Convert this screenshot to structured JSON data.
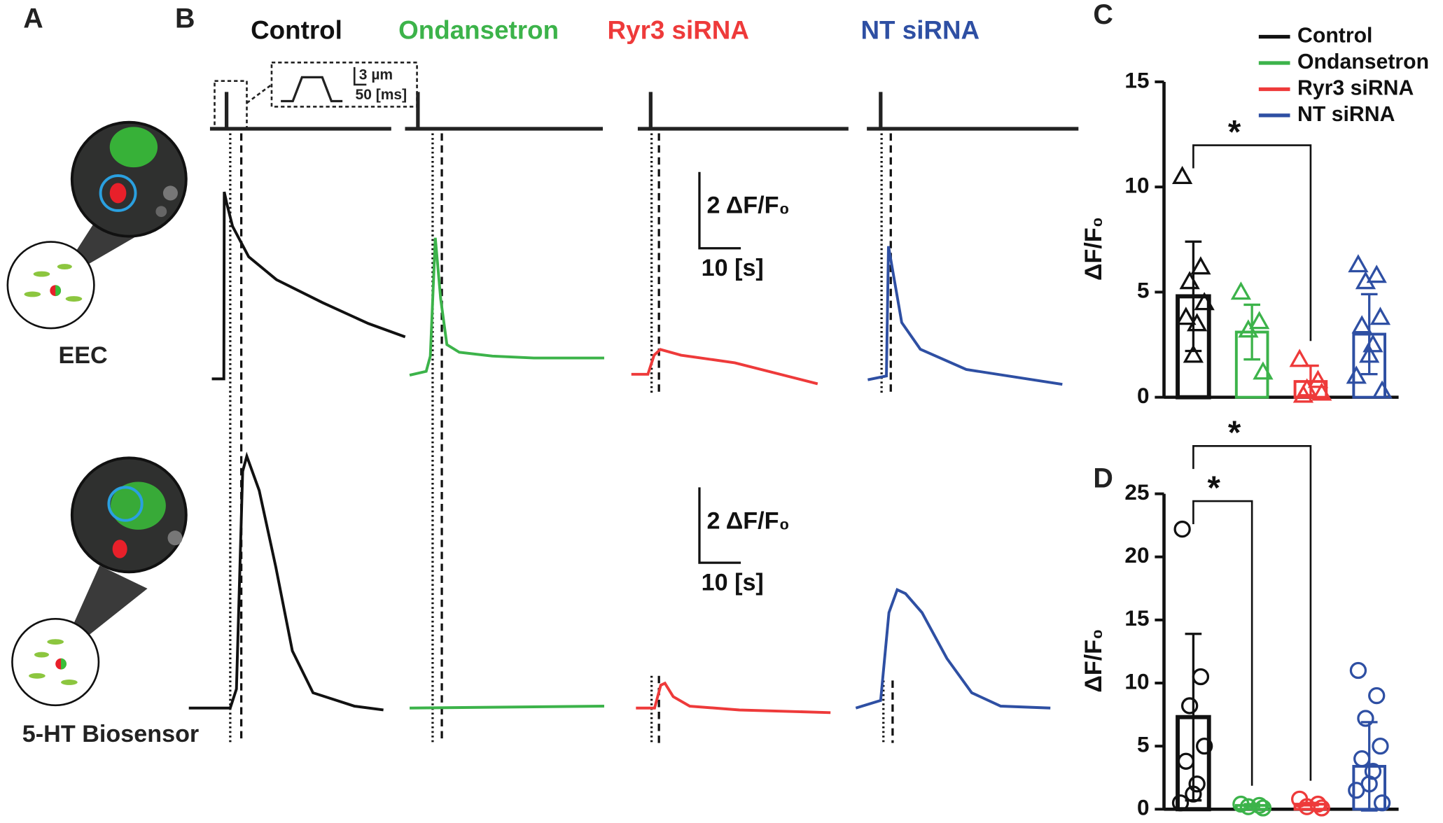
{
  "panels": {
    "labels": [
      "A",
      "B",
      "C",
      "D"
    ],
    "cell_labels": [
      "EEC",
      "5-HT Biosensor"
    ]
  },
  "chart_data": [
    {
      "type": "line",
      "scale_bar": {
        "amplitude": "2 ΔF/F₀",
        "time": "10 [s]"
      },
      "inset": {
        "amplitude": "3 µm",
        "duration": "50 [ms]"
      },
      "series": [
        {
          "name": "Control",
          "color": "#111111",
          "x": [
            0,
            2.9,
            3.0,
            3.6,
            5,
            8.9,
            15.6,
            26.7,
            37.8,
            46.7
          ],
          "values": [
            0,
            0,
            4.9,
            4.6,
            4.0,
            3.2,
            2.6,
            2.0,
            1.45,
            1.1
          ]
        },
        {
          "name": "Ondansetron",
          "color": "#3cb34a",
          "x": [
            0,
            4,
            5,
            6.2,
            7.5,
            9,
            12,
            20,
            30,
            47
          ],
          "values": [
            0,
            0.1,
            0.5,
            3.6,
            2.0,
            0.8,
            0.6,
            0.5,
            0.45,
            0.45
          ]
        },
        {
          "name": "Ryr3 siRNA",
          "color": "#ee3a3a",
          "x": [
            0,
            4,
            5.5,
            7,
            12,
            25,
            45
          ],
          "values": [
            0,
            0,
            0.5,
            0.65,
            0.5,
            0.3,
            -0.25
          ]
        },
        {
          "name": "NT siRNA",
          "color": "#2e4fa3",
          "x": [
            0,
            4.5,
            5,
            8.2,
            12.7,
            23.8,
            47
          ],
          "values": [
            0,
            0.1,
            3.5,
            1.5,
            0.8,
            0.27,
            -0.12
          ]
        }
      ]
    },
    {
      "type": "line",
      "scale_bar": {
        "amplitude": "2 ΔF/F₀",
        "time": "10 [s]"
      },
      "series": [
        {
          "color": "#111111",
          "x": [
            0,
            10,
            11.5,
            13,
            14,
            17,
            21,
            25,
            30,
            40,
            47
          ],
          "values": [
            0,
            0,
            0.5,
            6.2,
            6.6,
            5.7,
            3.7,
            1.5,
            0.4,
            0.05,
            -0.05
          ]
        },
        {
          "color": "#3cb34a",
          "x": [
            0,
            47
          ],
          "values": [
            0,
            0.05
          ]
        },
        {
          "color": "#ee3a3a",
          "x": [
            0,
            4.5,
            6,
            7,
            9,
            13,
            25,
            47
          ],
          "values": [
            0,
            0,
            0.6,
            0.65,
            0.3,
            0.05,
            -0.05,
            -0.12
          ]
        },
        {
          "color": "#2e4fa3",
          "x": [
            0,
            6,
            8,
            10,
            12,
            16,
            22,
            28,
            35,
            47
          ],
          "values": [
            0,
            0.2,
            2.5,
            3.1,
            3.0,
            2.5,
            1.3,
            0.4,
            0.05,
            0
          ]
        }
      ]
    },
    {
      "type": "bar",
      "ylabel": "ΔF/F₀",
      "ylim": [
        0,
        15
      ],
      "yticks": [
        0,
        5,
        10,
        15
      ],
      "marker": "triangle",
      "legend": true,
      "series": [
        {
          "name": "Control",
          "color": "#111111",
          "values": [
            4.8
          ],
          "errors": [
            2.6
          ],
          "points": [
            10.5,
            6.2,
            5.5,
            4.5,
            3.8,
            3.5,
            2.0
          ]
        },
        {
          "name": "Ondansetron",
          "color": "#3cb34a",
          "values": [
            3.1
          ],
          "errors": [
            1.3
          ],
          "points": [
            5.0,
            3.6,
            3.2,
            1.2
          ]
        },
        {
          "name": "Ryr3 siRNA",
          "color": "#ee3a3a",
          "values": [
            0.75
          ],
          "errors": [
            0.75
          ],
          "points": [
            1.8,
            0.8,
            0.4,
            0.2,
            0.1
          ]
        },
        {
          "name": "NT siRNA",
          "color": "#2e4fa3",
          "values": [
            3.0
          ],
          "errors": [
            1.9
          ],
          "points": [
            6.3,
            5.8,
            5.5,
            3.8,
            3.4,
            2.5,
            2.0,
            1.0,
            0.3
          ]
        }
      ],
      "significance": [
        {
          "label": "*",
          "pair": [
            "Control",
            "Ryr3 siRNA"
          ]
        }
      ]
    },
    {
      "type": "bar",
      "ylabel": "ΔF/F₀",
      "ylim": [
        0,
        25
      ],
      "yticks": [
        0,
        5,
        10,
        15,
        20,
        25
      ],
      "marker": "circle",
      "legend": false,
      "series": [
        {
          "name": "Control",
          "color": "#111111",
          "values": [
            7.3
          ],
          "errors": [
            6.6
          ],
          "points": [
            22.2,
            10.5,
            8.2,
            5.0,
            3.8,
            2.0,
            1.2,
            0.5
          ]
        },
        {
          "name": "Ondansetron",
          "color": "#3cb34a",
          "values": [
            0.3
          ],
          "errors": [
            0.1
          ],
          "points": [
            0.4,
            0.3,
            0.2,
            0.1
          ]
        },
        {
          "name": "Ryr3 siRNA",
          "color": "#ee3a3a",
          "values": [
            0.4
          ],
          "errors": [
            0.1
          ],
          "points": [
            0.8,
            0.4,
            0.2,
            0.1
          ]
        },
        {
          "name": "NT siRNA",
          "color": "#2e4fa3",
          "values": [
            3.4
          ],
          "errors": [
            3.5
          ],
          "points": [
            11.0,
            9.0,
            7.2,
            5.0,
            4.0,
            3.0,
            2.0,
            1.5,
            0.5
          ]
        }
      ],
      "significance": [
        {
          "label": "*",
          "pair": [
            "Control",
            "Ondansetron"
          ]
        },
        {
          "label": "*",
          "pair": [
            "Control",
            "Ryr3 siRNA"
          ]
        }
      ]
    }
  ]
}
